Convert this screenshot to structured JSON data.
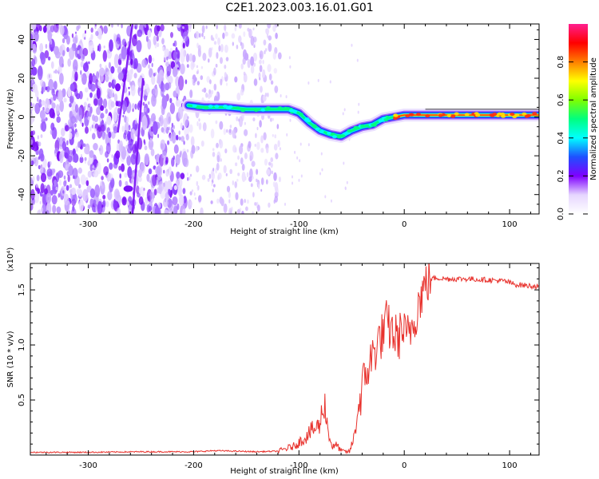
{
  "title": "C2E1.2023.003.16.01.G01",
  "chart_data": [
    {
      "type": "heatmap",
      "xlabel": "Height of straight line (km)",
      "ylabel": "Frequency (Hz)",
      "xlim": [
        -355,
        128
      ],
      "ylim": [
        -50,
        48
      ],
      "xticks": [
        -300,
        -200,
        -100,
        0,
        100
      ],
      "yticks": [
        -40,
        -20,
        0,
        20,
        40
      ],
      "colorbar": {
        "label": "Normalized spectral amplitude",
        "range": [
          0,
          1
        ],
        "ticks": [
          "0.0",
          "0.2",
          "0.4",
          "0.6",
          "0.8"
        ],
        "tick_values": [
          0,
          0.2,
          0.4,
          0.6,
          0.8
        ],
        "colors": [
          "#ffffff",
          "#e6d6ff",
          "#7f00ff",
          "#1e50ff",
          "#00ffff",
          "#00ff7f",
          "#7fff00",
          "#ffff00",
          "#ff7f00",
          "#ff0000",
          "#ff1f8f"
        ]
      },
      "ridge": {
        "x": [
          -205,
          -190,
          -170,
          -150,
          -130,
          -110,
          -100,
          -90,
          -80,
          -70,
          -60,
          -50,
          -40,
          -30,
          -20,
          -10,
          0,
          20,
          40,
          60,
          80,
          90,
          100,
          110,
          128
        ],
        "y": [
          6,
          5,
          5,
          4,
          4,
          4,
          2,
          -3,
          -7,
          -9,
          -10,
          -7,
          -5,
          -4,
          -1,
          0,
          1,
          1,
          1,
          1,
          1,
          1,
          1,
          1,
          1
        ]
      },
      "noise_region": {
        "x": [
          -355,
          -118
        ],
        "y": [
          -50,
          48
        ]
      }
    },
    {
      "type": "line",
      "xlabel": "Height of straight line (km)",
      "ylabel": "SNR (10 * v/v)",
      "multiplier": "(x10⁴)",
      "xlim": [
        -355,
        128
      ],
      "ylim": [
        0,
        17400
      ],
      "xticks": [
        -300,
        -200,
        -100,
        0,
        100
      ],
      "yticks": [
        5000,
        10000,
        15000
      ],
      "ytick_labels": [
        "0.5",
        "1.0",
        "1.5"
      ],
      "series": [
        {
          "color": "#e8322d",
          "x": [
            -355,
            -300,
            -250,
            -200,
            -180,
            -160,
            -140,
            -120,
            -105,
            -95,
            -88,
            -83,
            -80,
            -76,
            -72,
            -68,
            -64,
            -60,
            -56,
            -52,
            -48,
            -44,
            -40,
            -36,
            -32,
            -28,
            -24,
            -20,
            -17,
            -14,
            -10,
            -6,
            -2,
            2,
            6,
            10,
            14,
            18,
            22,
            26,
            30,
            40,
            60,
            80,
            95,
            105,
            115,
            128
          ],
          "y": [
            250,
            250,
            300,
            300,
            400,
            350,
            300,
            350,
            800,
            1500,
            2200,
            2500,
            2800,
            5000,
            2000,
            700,
            900,
            400,
            300,
            300,
            1500,
            4000,
            6000,
            7500,
            8500,
            9500,
            10500,
            11000,
            12000,
            11500,
            11000,
            10500,
            11500,
            10500,
            11500,
            12500,
            14000,
            15000,
            15800,
            16000,
            16100,
            16000,
            16000,
            15900,
            15800,
            15500,
            15400,
            15300
          ]
        }
      ]
    }
  ]
}
